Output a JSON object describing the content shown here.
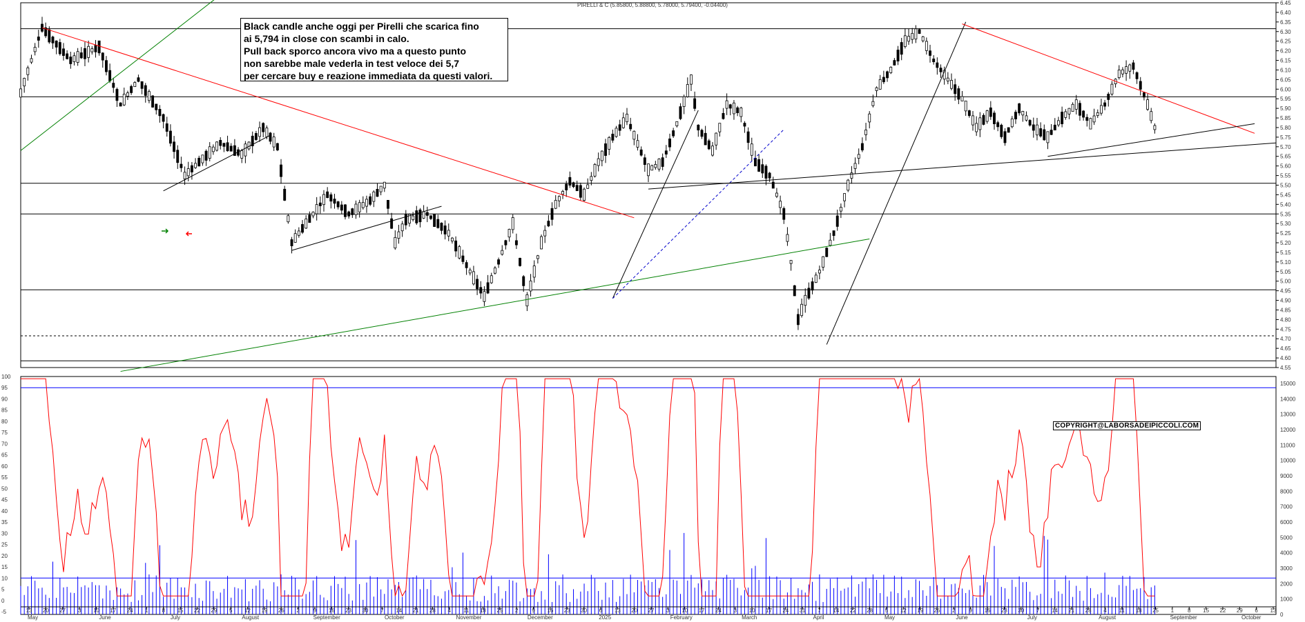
{
  "header": {
    "title": "PIRELLI & C (5.85800, 5.88800, 5.78000, 5.79400, -0.04400)"
  },
  "annotation": {
    "lines": [
      "Black candle anche oggi per Pirelli che scarica fino",
      "ai 5,794 in close con scambi in calo.",
      "Pull back sporco ancora vivo ma a questo punto",
      "non sarebbe male vederla in test veloce dei 5,7",
      "per cercare buy e reazione immediata da questi valori."
    ]
  },
  "copyright": "COPYRIGHT@LABORSADEIPICCOLI.COM",
  "chart_data": [
    {
      "type": "candlestick",
      "title": "PIRELLI & C (5.85800, 5.88800, 5.78000, 5.79400, -0.04400)",
      "last_bar": {
        "open": 5.858,
        "high": 5.888,
        "low": 5.78,
        "close": 5.794,
        "change": -0.044
      },
      "ylim": [
        4.55,
        6.45
      ],
      "y_ticks": [
        "6.45",
        "6.40",
        "6.35",
        "6.30",
        "6.25",
        "6.20",
        "6.15",
        "6.10",
        "6.05",
        "6.00",
        "5.95",
        "5.90",
        "5.85",
        "5.80",
        "5.75",
        "5.70",
        "5.65",
        "5.60",
        "5.55",
        "5.50",
        "5.45",
        "5.40",
        "5.35",
        "5.30",
        "5.25",
        "5.20",
        "5.15",
        "5.10",
        "5.05",
        "5.00",
        "4.95",
        "4.90",
        "4.85",
        "4.80",
        "4.75",
        "4.70",
        "4.65",
        "4.60",
        "4.55"
      ],
      "horizontal_levels": [
        6.315,
        5.96,
        5.51,
        5.35,
        4.955,
        4.715,
        4.585
      ],
      "price_path": [
        [
          0,
          5.98
        ],
        [
          6,
          6.32
        ],
        [
          14,
          6.15
        ],
        [
          22,
          6.22
        ],
        [
          28,
          5.92
        ],
        [
          33,
          6.05
        ],
        [
          40,
          5.85
        ],
        [
          46,
          5.55
        ],
        [
          50,
          5.62
        ],
        [
          56,
          5.72
        ],
        [
          62,
          5.66
        ],
        [
          68,
          5.8
        ],
        [
          72,
          5.7
        ],
        [
          76,
          5.2
        ],
        [
          80,
          5.3
        ],
        [
          86,
          5.45
        ],
        [
          92,
          5.35
        ],
        [
          98,
          5.42
        ],
        [
          102,
          5.5
        ],
        [
          105,
          5.2
        ],
        [
          108,
          5.32
        ],
        [
          114,
          5.35
        ],
        [
          120,
          5.25
        ],
        [
          126,
          5.05
        ],
        [
          130,
          4.92
        ],
        [
          134,
          5.1
        ],
        [
          138,
          5.3
        ],
        [
          142,
          4.9
        ],
        [
          146,
          5.2
        ],
        [
          150,
          5.4
        ],
        [
          154,
          5.52
        ],
        [
          158,
          5.45
        ],
        [
          162,
          5.62
        ],
        [
          166,
          5.75
        ],
        [
          170,
          5.85
        ],
        [
          176,
          5.58
        ],
        [
          180,
          5.62
        ],
        [
          184,
          5.82
        ],
        [
          188,
          6.05
        ],
        [
          190,
          5.8
        ],
        [
          194,
          5.68
        ],
        [
          198,
          5.92
        ],
        [
          202,
          5.88
        ],
        [
          206,
          5.62
        ],
        [
          210,
          5.55
        ],
        [
          214,
          5.35
        ],
        [
          216,
          5.1
        ],
        [
          218,
          4.8
        ],
        [
          220,
          4.9
        ],
        [
          224,
          5.05
        ],
        [
          228,
          5.25
        ],
        [
          232,
          5.5
        ],
        [
          236,
          5.7
        ],
        [
          240,
          6.0
        ],
        [
          244,
          6.1
        ],
        [
          248,
          6.25
        ],
        [
          252,
          6.3
        ],
        [
          256,
          6.15
        ],
        [
          260,
          6.05
        ],
        [
          264,
          5.95
        ],
        [
          268,
          5.8
        ],
        [
          272,
          5.88
        ],
        [
          276,
          5.75
        ],
        [
          280,
          5.9
        ],
        [
          284,
          5.8
        ],
        [
          288,
          5.75
        ],
        [
          292,
          5.85
        ],
        [
          296,
          5.92
        ],
        [
          300,
          5.82
        ],
        [
          304,
          5.92
        ],
        [
          308,
          6.08
        ],
        [
          312,
          6.12
        ],
        [
          316,
          5.92
        ],
        [
          318,
          5.8
        ]
      ],
      "trendlines": [
        {
          "color": "#008000",
          "from": [
            0,
            5.68
          ],
          "to": [
            58,
            6.52
          ]
        },
        {
          "color": "#ff0000",
          "from": [
            6,
            6.32
          ],
          "to": [
            172,
            5.33
          ]
        },
        {
          "color": "#000000",
          "from": [
            40,
            5.47
          ],
          "to": [
            70,
            5.76
          ]
        },
        {
          "color": "#000000",
          "from": [
            76,
            5.16
          ],
          "to": [
            118,
            5.39
          ]
        },
        {
          "color": "#008000",
          "from": [
            28,
            4.53
          ],
          "to": [
            238,
            5.22
          ]
        },
        {
          "color": "#000000",
          "from": [
            166,
            4.91
          ],
          "to": [
            190,
            5.89
          ]
        },
        {
          "color": "#0000cc",
          "from": [
            166,
            4.91
          ],
          "to": [
            214,
            5.79
          ],
          "dashed": true
        },
        {
          "color": "#000000",
          "from": [
            176,
            5.48
          ],
          "to": [
            352,
            5.72
          ]
        },
        {
          "color": "#000000",
          "from": [
            226,
            4.67
          ],
          "to": [
            265,
            6.35
          ]
        },
        {
          "color": "#ff0000",
          "from": [
            264,
            6.34
          ],
          "to": [
            346,
            5.77
          ]
        },
        {
          "color": "#000000",
          "from": [
            288,
            5.65
          ],
          "to": [
            346,
            5.82
          ]
        }
      ]
    },
    {
      "type": "bar",
      "name": "stochastic and volume",
      "ylim_left": [
        -5,
        100
      ],
      "ylim_right": [
        0,
        15000
      ],
      "y_ticks_left": [
        "100",
        "95",
        "90",
        "85",
        "80",
        "75",
        "70",
        "65",
        "60",
        "55",
        "50",
        "45",
        "40",
        "35",
        "30",
        "25",
        "20",
        "15",
        "10",
        "5",
        "0",
        "-5"
      ],
      "y_ticks_right": [
        "15000",
        "14000",
        "13000",
        "12000",
        "11000",
        "10000",
        "9000",
        "8000",
        "7000",
        "6000",
        "5000",
        "4000",
        "3000",
        "2000",
        "1000",
        "0"
      ],
      "horizontal_levels": [
        95,
        10
      ]
    }
  ],
  "x_axis": {
    "day_ticks": [
      "13",
      "20",
      "27",
      "3",
      "10",
      "17",
      "24",
      "1",
      "8",
      "15",
      "22",
      "29",
      "5",
      "12",
      "19",
      "26",
      "2",
      "9",
      "16",
      "23",
      "30",
      "7",
      "14",
      "21",
      "28",
      "4",
      "11",
      "18",
      "25",
      "2",
      "9",
      "16",
      "23",
      "30",
      "6",
      "13",
      "20",
      "27",
      "3",
      "10",
      "17",
      "24",
      "3",
      "10",
      "17",
      "24",
      "31",
      "7",
      "14",
      "22",
      "28",
      "5",
      "12",
      "19",
      "26",
      "2",
      "9",
      "16",
      "23",
      "30",
      "7",
      "14",
      "21",
      "28",
      "4",
      "11",
      "18",
      "25",
      "1",
      "8",
      "15",
      "22",
      "29",
      "6",
      "13"
    ],
    "months": [
      "May",
      "June",
      "July",
      "August",
      "September",
      "October",
      "November",
      "December",
      "2025",
      "February",
      "March",
      "April",
      "May",
      "June",
      "July",
      "August",
      "September",
      "October"
    ]
  },
  "colors": {
    "up_candle": "#ffffff",
    "down_candle": "#000000",
    "oscillator": "#ff0000",
    "volume": "#0000ff",
    "grid": "#000000"
  }
}
